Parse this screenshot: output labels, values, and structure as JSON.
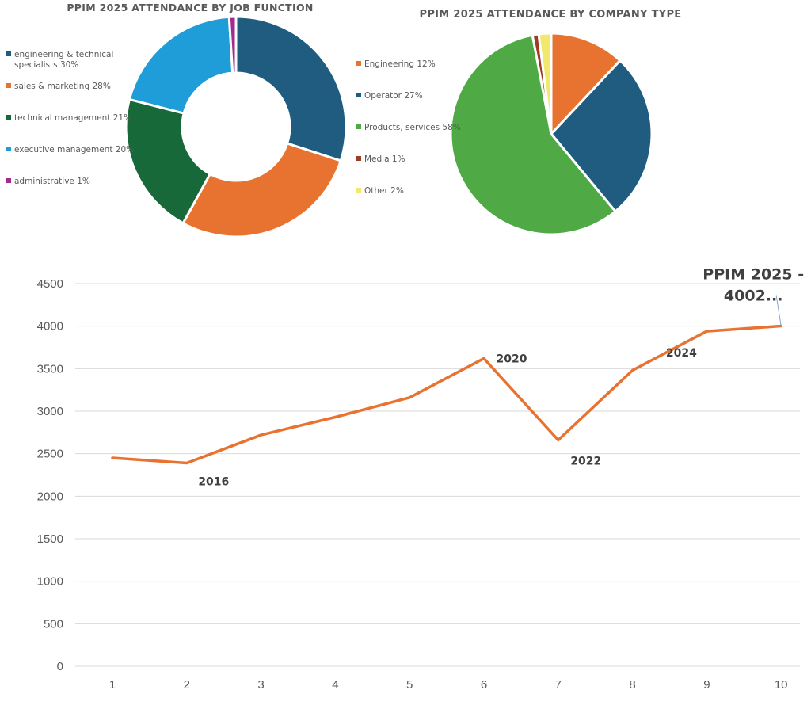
{
  "chart_data": [
    {
      "type": "pie",
      "subtype": "donut",
      "title": "PPIM 2025 ATTENDANCE BY JOB FUNCTION",
      "legend_position": "left",
      "slices": [
        {
          "label": "engineering & technical specialists 30%",
          "value": 30,
          "color": "#1F5C80"
        },
        {
          "label": "sales & marketing 28%",
          "value": 28,
          "color": "#E87331"
        },
        {
          "label": "technical management 21%",
          "value": 21,
          "color": "#17693A"
        },
        {
          "label": "executive management 20%",
          "value": 20,
          "color": "#1E9DD8"
        },
        {
          "label": "administrative 1%",
          "value": 1,
          "color": "#A52A8E"
        }
      ]
    },
    {
      "type": "pie",
      "title": "PPIM 2025 ATTENDANCE BY COMPANY TYPE",
      "legend_position": "left",
      "slices": [
        {
          "label": "Engineering 12%",
          "value": 12,
          "color": "#E87331"
        },
        {
          "label": "Operator 27%",
          "value": 27,
          "color": "#1F5C80"
        },
        {
          "label": "Products, services 58%",
          "value": 58,
          "color": "#4FAA46"
        },
        {
          "label": "Media 1%",
          "value": 1,
          "color": "#9B3D22"
        },
        {
          "label": "Other 2%",
          "value": 2,
          "color": "#F3E86E"
        }
      ]
    },
    {
      "type": "line",
      "title": "",
      "xlabel": "",
      "ylabel": "",
      "x": [
        1,
        2,
        3,
        4,
        5,
        6,
        7,
        8,
        9,
        10
      ],
      "xticks": [
        "1",
        "2",
        "3",
        "4",
        "5",
        "6",
        "7",
        "8",
        "9",
        "10"
      ],
      "yticks": [
        "0",
        "500",
        "1000",
        "1500",
        "2000",
        "2500",
        "3000",
        "3500",
        "4000",
        "4500"
      ],
      "ylim": [
        0,
        4500
      ],
      "grid": "horizontal",
      "series": [
        {
          "values": [
            2450,
            2390,
            2720,
            2930,
            3160,
            3620,
            2660,
            3480,
            3940,
            4002
          ],
          "color": "#E87331"
        }
      ],
      "annotations": [
        {
          "x": 2,
          "text": "2016"
        },
        {
          "x": 6,
          "text": "2020"
        },
        {
          "x": 7,
          "text": "2022"
        },
        {
          "x": 9,
          "text": "2024"
        },
        {
          "x": 10,
          "text": "PPIM 2025 - 4002..."
        }
      ]
    }
  ]
}
